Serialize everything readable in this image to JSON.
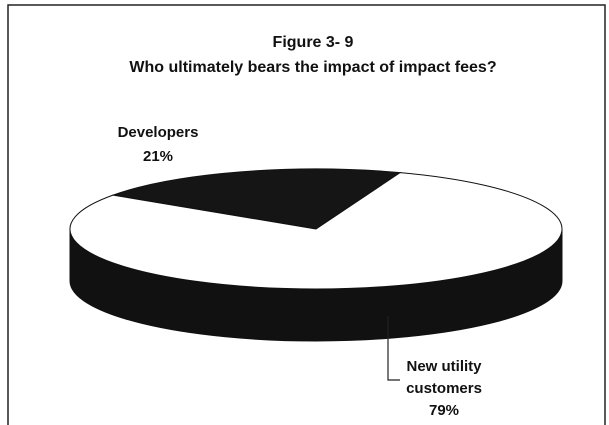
{
  "chart_data": {
    "type": "pie",
    "title": "Figure 3- 9",
    "subtitle": "Who ultimately bears the impact of impact fees?",
    "categories": [
      "Developers",
      "New utility customers"
    ],
    "values": [
      21,
      79
    ],
    "value_labels": [
      "21%",
      "79%"
    ],
    "colors": [
      "#151515",
      "#ffffff"
    ]
  }
}
